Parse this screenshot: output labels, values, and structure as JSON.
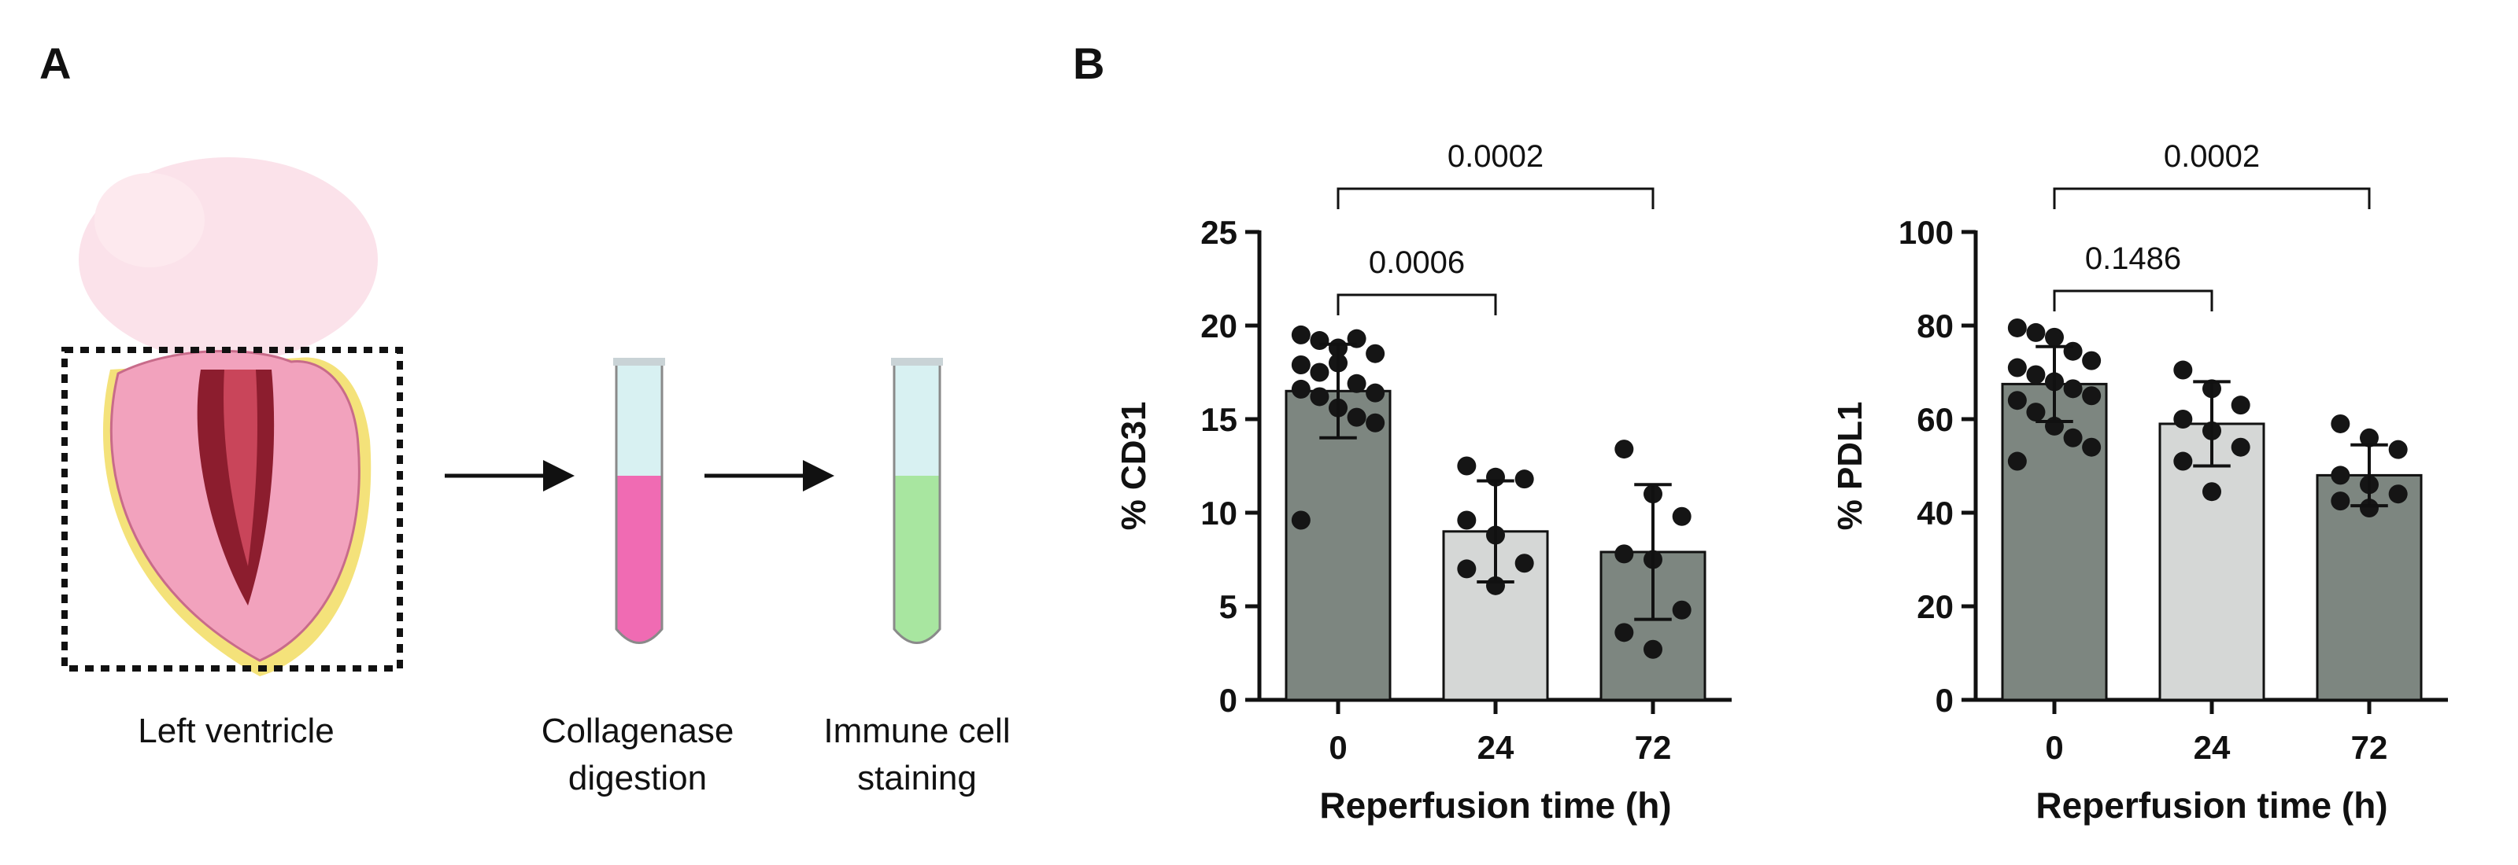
{
  "panels": {
    "a_label": "A",
    "b_label": "B"
  },
  "workflow": {
    "step1_label": "Left ventricle",
    "step2_label": "Collagenase\ndigestion",
    "step3_label": "Immune cell\nstaining",
    "tube_colors": {
      "digestion": "#f06bb3",
      "staining": "#a8e6a0",
      "cap": "#d8f1f2"
    },
    "heart_color": "#f2a2bd"
  },
  "colors": {
    "bar_dark": "#7d8680",
    "bar_light": "#d5d7d6",
    "dot": "#151515",
    "axis": "#111111"
  },
  "chart_data": [
    {
      "type": "bar",
      "ylabel": "% CD31",
      "xlabel": "Reperfusion time (h)",
      "categories": [
        "0",
        "24",
        "72"
      ],
      "ylim": [
        0,
        25
      ],
      "yticks": [
        0,
        5,
        10,
        15,
        20,
        25
      ],
      "bar_styles": [
        "dark",
        "light",
        "dark"
      ],
      "means": [
        16.5,
        9.0,
        7.9
      ],
      "sd": [
        2.5,
        2.7,
        3.6
      ],
      "points": [
        [
          19.5,
          19.2,
          18.8,
          19.3,
          18.5,
          17.9,
          17.5,
          18.0,
          16.9,
          16.4,
          16.6,
          16.2,
          15.6,
          15.1,
          14.8,
          9.6
        ],
        [
          12.5,
          11.9,
          11.8,
          9.6,
          8.8,
          7.3,
          7.0,
          6.1
        ],
        [
          13.4,
          11.0,
          9.8,
          7.8,
          7.5,
          4.8,
          3.6,
          2.7
        ]
      ],
      "comparisons": [
        {
          "from": "0",
          "to": "24",
          "label": "0.0006"
        },
        {
          "from": "0",
          "to": "72",
          "label": "0.0002"
        }
      ]
    },
    {
      "type": "bar",
      "ylabel": "% PDL1",
      "xlabel": "Reperfusion time (h)",
      "categories": [
        "0",
        "24",
        "72"
      ],
      "ylim": [
        0,
        100
      ],
      "yticks": [
        0,
        20,
        40,
        60,
        80,
        100
      ],
      "bar_styles": [
        "dark",
        "light",
        "dark"
      ],
      "means": [
        67.5,
        59.0,
        48.0
      ],
      "sd": [
        8.0,
        9.0,
        6.5
      ],
      "points": [
        [
          79.5,
          78.5,
          77.5,
          74.5,
          72.5,
          71.0,
          69.5,
          68.0,
          66.5,
          65.0,
          64.0,
          61.5,
          58.5,
          56.0,
          54.0,
          51.0
        ],
        [
          70.5,
          66.5,
          63.0,
          60.0,
          57.5,
          54.0,
          51.0,
          44.5
        ],
        [
          59.0,
          56.0,
          53.5,
          48.0,
          46.0,
          44.0,
          42.5,
          41.0
        ]
      ],
      "comparisons": [
        {
          "from": "0",
          "to": "24",
          "label": "0.1486"
        },
        {
          "from": "0",
          "to": "72",
          "label": "0.0002"
        }
      ]
    }
  ]
}
